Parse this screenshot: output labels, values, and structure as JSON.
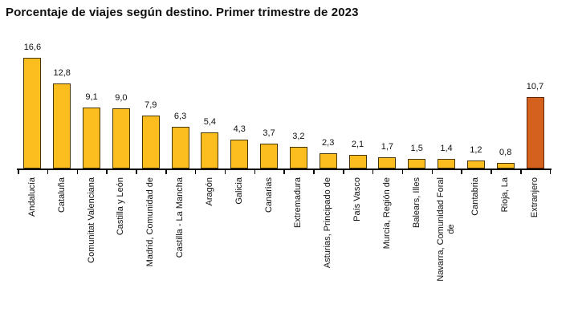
{
  "title": "Porcentaje de viajes según destino. Primer trimestre de 2023",
  "chart_data": {
    "type": "bar",
    "title": "Porcentaje de viajes según destino. Primer trimestre de 2023",
    "categories": [
      "Andalucía",
      "Cataluña",
      "Comunitat Valenciana",
      "Castilla y León",
      "Madrid, Comunidad de",
      "Castilla - La Mancha",
      "Aragón",
      "Galicia",
      "Canarias",
      "Extremadura",
      "Asturias, Principado de",
      "País Vasco",
      "Murcia, Región de",
      "Balears, Illes",
      "Navarra, Comunidad Foral de",
      "Cantabria",
      "Rioja, La",
      "Extranjero"
    ],
    "categories_display": [
      "Andalucía",
      "Cataluña",
      "Comunitat Valenciana",
      "Castilla y León",
      "Madrid, Comunidad de",
      "Castilla - La Mancha",
      "Aragón",
      "Galicia",
      "Canarias",
      "Extremadura",
      "Asturias, Principado de",
      "País Vasco",
      "Murcia, Región de",
      "Balears, Illes",
      "Navarra, Comunidad Foral\nde",
      "Cantabria",
      "Rioja, La",
      "Extranjero"
    ],
    "values": [
      16.6,
      12.8,
      9.1,
      9.0,
      7.9,
      6.3,
      5.4,
      4.3,
      3.7,
      3.2,
      2.3,
      2.1,
      1.7,
      1.5,
      1.4,
      1.2,
      0.8,
      10.7
    ],
    "value_labels": [
      "16,6",
      "12,8",
      "9,1",
      "9,0",
      "7,9",
      "6,3",
      "5,4",
      "4,3",
      "3,7",
      "3,2",
      "2,3",
      "2,1",
      "1,7",
      "1,5",
      "1,4",
      "1,2",
      "0,8",
      "10,7"
    ],
    "xlabel": "",
    "ylabel": "",
    "ylim": [
      0,
      17
    ],
    "grid": false,
    "legend": false,
    "value_labels_shown": true,
    "x_labels_rotation": "90-ccw-bottom-to-top",
    "highlight_index": 17,
    "highlight_category": "Extranjero",
    "palette": {
      "bar_fill": "#FBBE1E",
      "bar_border": "#473607",
      "highlight_fill": "#D4611E",
      "highlight_border": "#5F2506",
      "axis": "#000000",
      "text": "#111111"
    }
  }
}
